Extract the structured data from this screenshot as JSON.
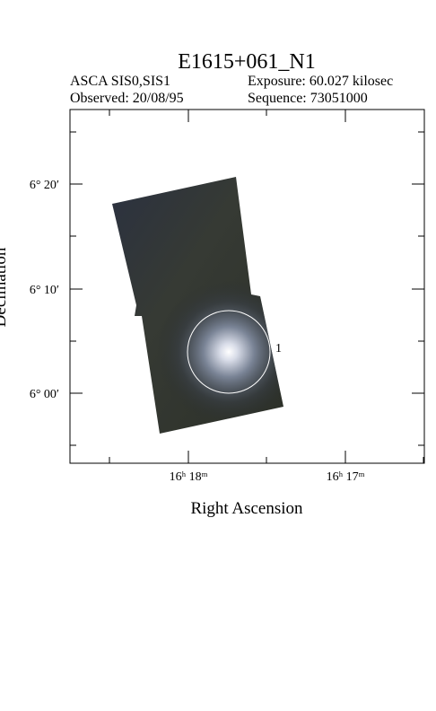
{
  "header": {
    "title": "E1615+061_N1",
    "instrument": "ASCA SIS0,SIS1",
    "exposure": "Exposure: 60.027 kilosec",
    "observed": "Observed: 20/08/95",
    "sequence": "Sequence: 73051000"
  },
  "axes": {
    "x_label": "Right Ascension",
    "y_label": "Declination",
    "y_tick_labels": [
      "6° 20′",
      "6° 10′",
      "6° 00′"
    ],
    "x_tick_labels": [
      "16ʰ 18ᵐ",
      "16ʰ 17ᵐ"
    ]
  },
  "source_label": "1"
}
